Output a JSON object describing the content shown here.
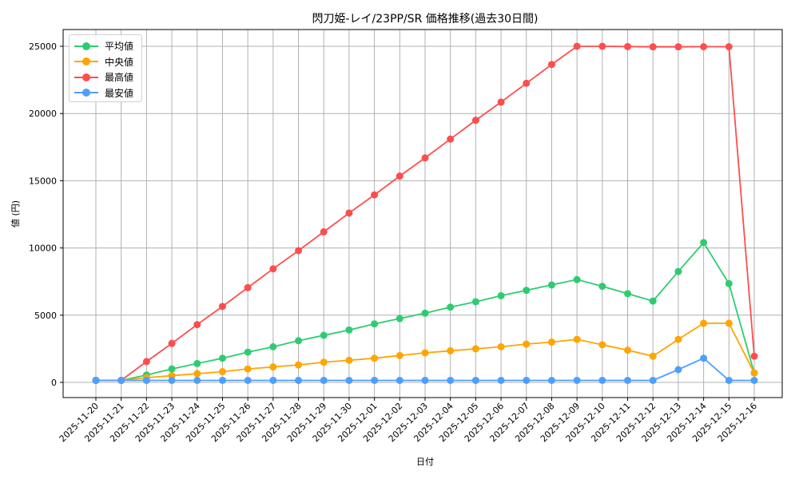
{
  "chart_data": {
    "type": "line",
    "title": "閃刀姫-レイ/23PP/SR 価格推移(過去30日間)",
    "xlabel": "日付",
    "ylabel": "値 (円)",
    "ylim": [
      -1200,
      26300
    ],
    "yticks": [
      0,
      5000,
      10000,
      15000,
      20000,
      25000
    ],
    "grid": true,
    "legend_position": "upper left",
    "categories": [
      "2025-11-20",
      "2025-11-21",
      "2025-11-22",
      "2025-11-23",
      "2025-11-24",
      "2025-11-25",
      "2025-11-26",
      "2025-11-27",
      "2025-11-28",
      "2025-11-29",
      "2025-11-30",
      "2025-12-01",
      "2025-12-02",
      "2025-12-03",
      "2025-12-04",
      "2025-12-05",
      "2025-12-06",
      "2025-12-07",
      "2025-12-08",
      "2025-12-09",
      "2025-12-10",
      "2025-12-11",
      "2025-12-12",
      "2025-12-13",
      "2025-12-14",
      "2025-12-15",
      "2025-12-16"
    ],
    "series": [
      {
        "name": "平均値",
        "color": "#2ecc71",
        "values": [
          150,
          150,
          550,
          1000,
          1400,
          1800,
          2250,
          2650,
          3100,
          3500,
          3900,
          4350,
          4750,
          5150,
          5600,
          6000,
          6450,
          6850,
          7250,
          7650,
          7150,
          6600,
          6050,
          8250,
          10400,
          7350,
          700
        ]
      },
      {
        "name": "中央値",
        "color": "#ffa500",
        "values": [
          150,
          150,
          350,
          500,
          650,
          800,
          1000,
          1150,
          1300,
          1500,
          1650,
          1800,
          2000,
          2200,
          2350,
          2500,
          2650,
          2850,
          3000,
          3200,
          2800,
          2400,
          1950,
          3200,
          4400,
          4400,
          700
        ]
      },
      {
        "name": "最高値",
        "color": "#ff4d4d",
        "values": [
          150,
          150,
          1550,
          2900,
          4300,
          5650,
          7050,
          8450,
          9800,
          11200,
          12600,
          13950,
          15350,
          16700,
          18100,
          19500,
          20850,
          22250,
          23650,
          25000,
          25000,
          24980,
          24960,
          24960,
          24970,
          24970,
          1950
        ]
      },
      {
        "name": "最安値",
        "color": "#4d9fff",
        "values": [
          150,
          150,
          150,
          150,
          150,
          150,
          150,
          150,
          150,
          150,
          150,
          150,
          150,
          150,
          150,
          150,
          150,
          150,
          150,
          150,
          150,
          150,
          150,
          950,
          1800,
          150,
          150
        ]
      }
    ]
  }
}
